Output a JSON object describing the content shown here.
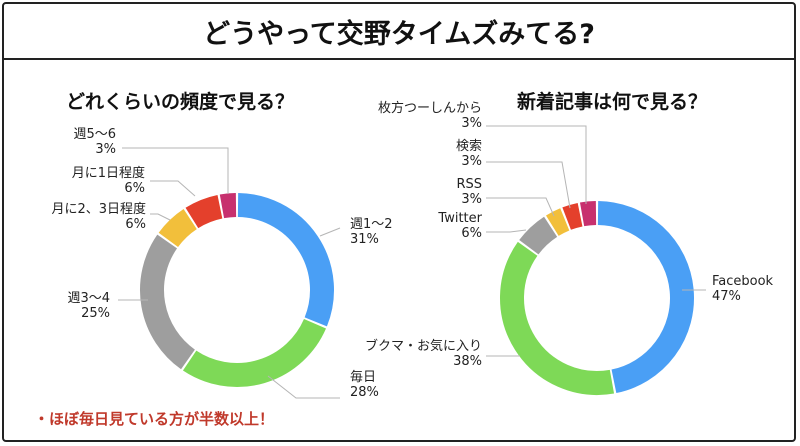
{
  "header": {
    "title": "どうやって交野タイムズみてる?"
  },
  "note": "・ほぼ毎日見ている方が半数以上！",
  "colors": {
    "blue": "#4a9ff5",
    "green": "#7ed957",
    "gray": "#9e9e9e",
    "yellow": "#f2bf3b",
    "red": "#e4402c",
    "magenta": "#c7306e"
  },
  "chart_data": [
    {
      "type": "pie",
      "donut": true,
      "title": "どれくらいの頻度で見る？",
      "slices": [
        {
          "label": "週1〜2",
          "value": 31,
          "display": "31%",
          "color": "#4a9ff5"
        },
        {
          "label": "毎日",
          "value": 28,
          "display": "28%",
          "color": "#7ed957"
        },
        {
          "label": "週3〜4",
          "value": 25,
          "display": "25%",
          "color": "#9e9e9e"
        },
        {
          "label": "月に2、3日程度",
          "value": 6,
          "display": "6%",
          "color": "#f2bf3b"
        },
        {
          "label": "月に1日程度",
          "value": 6,
          "display": "6%",
          "color": "#e4402c"
        },
        {
          "label": "週5〜6",
          "value": 3,
          "display": "3%",
          "color": "#c7306e"
        }
      ]
    },
    {
      "type": "pie",
      "donut": true,
      "title": "新着記事は何で見る？",
      "slices": [
        {
          "label": "Facebook",
          "value": 47,
          "display": "47%",
          "color": "#4a9ff5"
        },
        {
          "label": "ブクマ・お気に入り",
          "value": 38,
          "display": "38%",
          "color": "#7ed957"
        },
        {
          "label": "Twitter",
          "value": 6,
          "display": "6%",
          "color": "#9e9e9e"
        },
        {
          "label": "RSS",
          "value": 3,
          "display": "3%",
          "color": "#f2bf3b"
        },
        {
          "label": "検索",
          "value": 3,
          "display": "3%",
          "color": "#e4402c"
        },
        {
          "label": "枚方つーしんから",
          "value": 3,
          "display": "3%",
          "color": "#c7306e"
        }
      ]
    }
  ]
}
